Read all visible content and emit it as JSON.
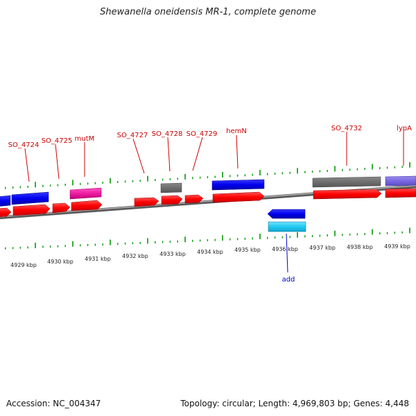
{
  "title": "Shewanella oneidensis MR-1, complete genome",
  "footer": {
    "accession": "Accession: NC_004347",
    "summary": "Topology: circular; Length: 4,969,803 bp; Genes: 4,448"
  },
  "colors": {
    "forward_cds": "#ff0000",
    "reverse_cds": "#0000ee",
    "tick": "#009900",
    "backbone": "#808080",
    "label_forward": "#cc0000",
    "label_reverse": "#0000cc"
  },
  "kbp_labels": [
    "4929 kbp",
    "4930 kbp",
    "4931 kbp",
    "4932 kbp",
    "4933 kbp",
    "4934 kbp",
    "4935 kbp",
    "4936 kbp",
    "4937 kbp",
    "4938 kbp",
    "4939 kbp"
  ],
  "gene_labels_top": [
    "SO_4724",
    "SO_4725",
    "mutM",
    "SO_4727",
    "SO_4728",
    "SO_4729",
    "hemN",
    "SO_4732",
    "lypA"
  ],
  "gene_labels_bottom": [
    "add"
  ]
}
